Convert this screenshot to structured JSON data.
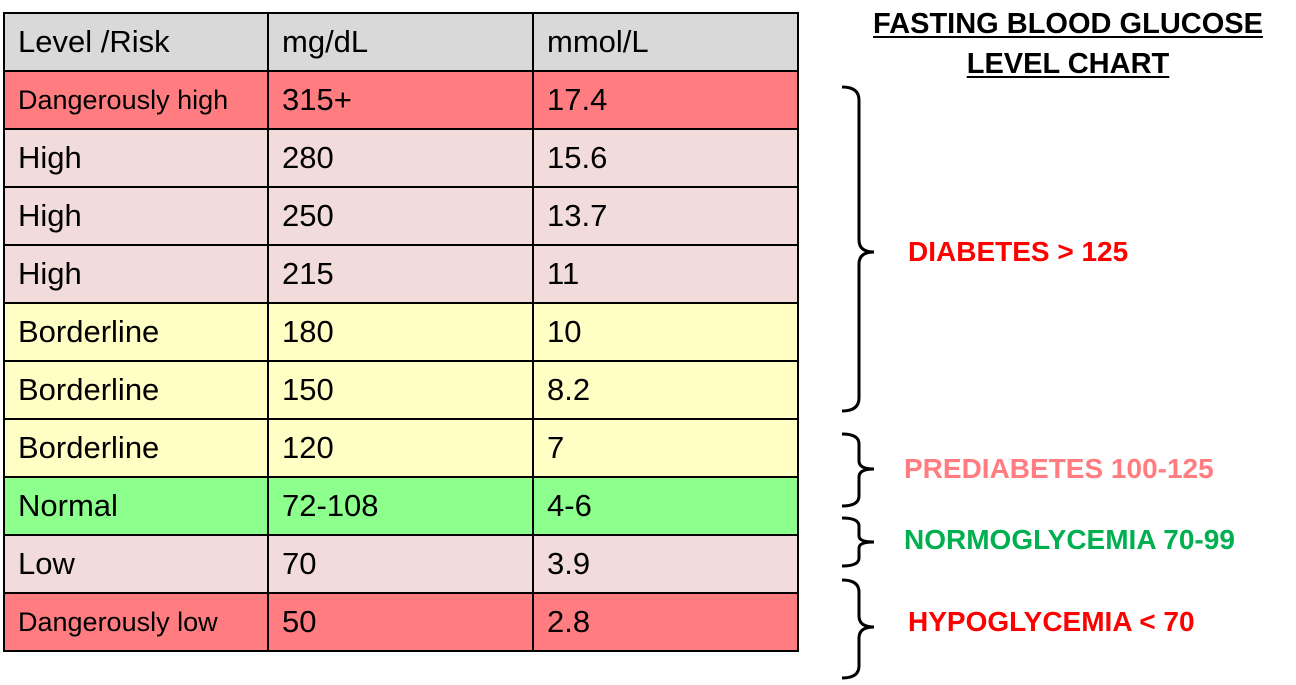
{
  "title_lines": [
    "FASTING BLOOD GLUCOSE",
    "LEVEL CHART"
  ],
  "table": {
    "headers": [
      "Level /Risk",
      "mg/dL",
      "mmol/L"
    ],
    "rows": [
      {
        "level": "Dangerously high",
        "mgdl": "315+",
        "mmol": "17.4",
        "color": "#ff7c80"
      },
      {
        "level": "High",
        "mgdl": "280",
        "mmol": "15.6",
        "color": "#f2dcdb"
      },
      {
        "level": "High",
        "mgdl": "250",
        "mmol": "13.7",
        "color": "#f2dcdb"
      },
      {
        "level": "High",
        "mgdl": "215",
        "mmol": "11",
        "color": "#f2dcdb"
      },
      {
        "level": "Borderline",
        "mgdl": "180",
        "mmol": "10",
        "color": "#ffffc5"
      },
      {
        "level": "Borderline",
        "mgdl": "150",
        "mmol": "8.2",
        "color": "#ffffc5"
      },
      {
        "level": "Borderline",
        "mgdl": "120",
        "mmol": "7",
        "color": "#ffffc5"
      },
      {
        "level": "Normal",
        "mgdl": "72-108",
        "mmol": "4-6",
        "color": "#8cff8c"
      },
      {
        "level": "Low",
        "mgdl": "70",
        "mmol": "3.9",
        "color": "#f2dcdb"
      },
      {
        "level": "Dangerously low",
        "mgdl": "50",
        "mmol": "2.8",
        "color": "#ff7c80"
      }
    ]
  },
  "categories": [
    {
      "label": "DIABETES > 125",
      "color": "#ff0000"
    },
    {
      "label": "PREDIABETES 100-125",
      "color": "#ff7c80"
    },
    {
      "label": "NORMOGLYCEMIA 70-99",
      "color": "#00b050"
    },
    {
      "label": "HYPOGLYCEMIA < 70",
      "color": "#ff0000"
    }
  ],
  "chart_data": {
    "type": "table",
    "title": "FASTING BLOOD GLUCOSE LEVEL CHART",
    "columns": [
      "Level /Risk",
      "mg/dL",
      "mmol/L"
    ],
    "rows": [
      [
        "Dangerously high",
        "315+",
        "17.4"
      ],
      [
        "High",
        "280",
        "15.6"
      ],
      [
        "High",
        "250",
        "13.7"
      ],
      [
        "High",
        "215",
        "11"
      ],
      [
        "Borderline",
        "180",
        "10"
      ],
      [
        "Borderline",
        "150",
        "8.2"
      ],
      [
        "Borderline",
        "120",
        "7"
      ],
      [
        "Normal",
        "72-108",
        "4-6"
      ],
      [
        "Low",
        "70",
        "3.9"
      ],
      [
        "Dangerously low",
        "50",
        "2.8"
      ]
    ],
    "annotations": [
      "DIABETES > 125",
      "PREDIABETES 100-125",
      "NORMOGLYCEMIA 70-99",
      "HYPOGLYCEMIA < 70"
    ]
  }
}
